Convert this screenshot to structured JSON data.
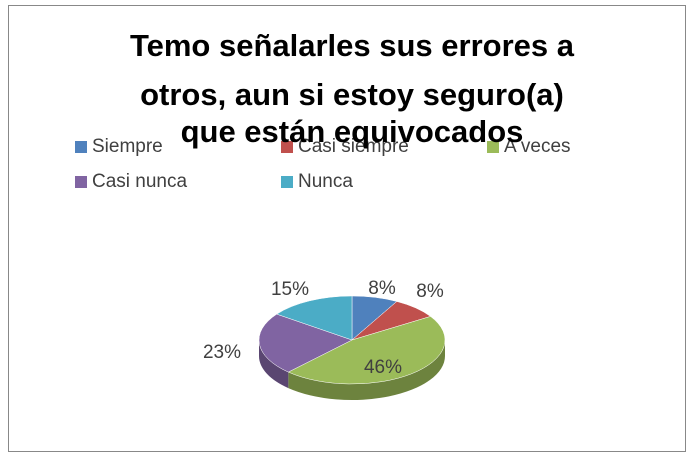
{
  "chart_data": {
    "type": "pie",
    "title": [
      "Temo señalarles sus errores a",
      "otros, aun si estoy seguro(a)",
      "que están equivocados"
    ],
    "categories": [
      "Siempre",
      "Casi siempre",
      "A veces",
      "Casi nunca",
      "Nunca"
    ],
    "values": [
      8,
      8,
      46,
      23,
      15
    ],
    "value_labels": [
      "8%",
      "8%",
      "46%",
      "23%",
      "15%"
    ],
    "colors": [
      "#4f81bd",
      "#c0504d",
      "#9bbb59",
      "#8064a2",
      "#4bacc6"
    ],
    "legend": "top"
  }
}
